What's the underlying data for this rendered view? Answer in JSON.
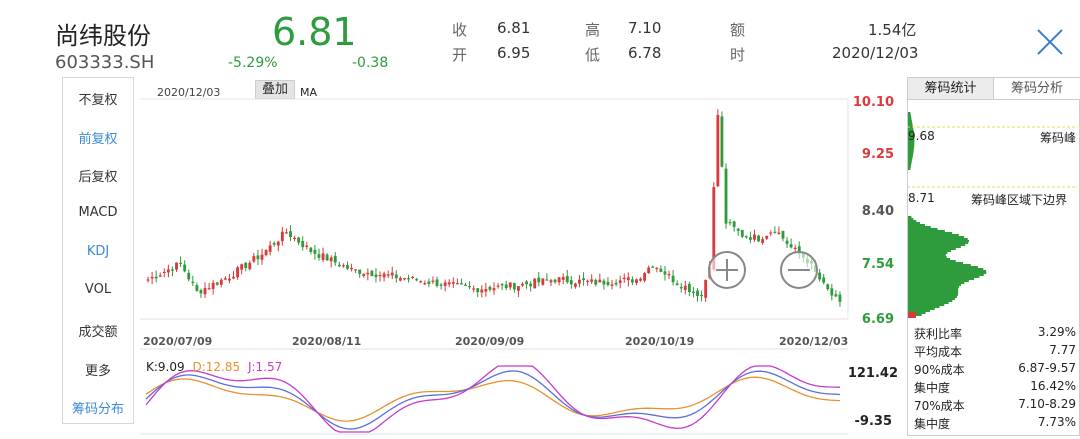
{
  "header": {
    "stock_name": "尚纬股份",
    "stock_code": "603333.SH",
    "price": "6.81",
    "change_pct": "-5.29%",
    "change_amt": "-0.38",
    "close_label": "收",
    "close_value": "6.81",
    "open_label": "开",
    "open_value": "6.95",
    "high_label": "高",
    "high_value": "7.10",
    "low_label": "低",
    "low_value": "6.78",
    "amount_label": "额",
    "amount_value": "1.54亿",
    "time_label": "时",
    "time_value": "2020/12/03"
  },
  "sidebar": {
    "items": [
      {
        "label": "不复权"
      },
      {
        "label": "前复权"
      },
      {
        "label": "后复权"
      },
      {
        "label": "MACD"
      },
      {
        "label": "KDJ"
      },
      {
        "label": "VOL"
      },
      {
        "label": "成交额"
      },
      {
        "label": "更多"
      },
      {
        "label": "筹码分布"
      }
    ]
  },
  "chart": {
    "top_date": "2020/12/03",
    "overlay_label": "叠加",
    "ma_label": "MA",
    "price_axis": [
      "10.10",
      "9.25",
      "8.40",
      "7.54",
      "6.69"
    ],
    "x_axis": [
      "2020/07/09",
      "2020/08/11",
      "2020/09/09",
      "2020/10/19",
      "2020/12/03"
    ],
    "kdj_axis": [
      "121.42",
      "-9.35"
    ],
    "kdj_k": "K:9.09",
    "kdj_d": "D:12.85",
    "kdj_j": "J:1.57",
    "colors": {
      "up": "#d93a3a",
      "down": "#2e9b3c",
      "k": "#5a6fd8",
      "d": "#e8912f",
      "j": "#c83bd0"
    }
  },
  "chart_data": {
    "type": "candlestick",
    "ylim": [
      6.69,
      10.1
    ],
    "x_ticks": [
      "2020/07/09",
      "2020/08/11",
      "2020/09/09",
      "2020/10/19",
      "2020/12/03"
    ],
    "kdj_ylim": [
      -9.35,
      121.42
    ],
    "last_kdj": {
      "K": 9.09,
      "D": 12.85,
      "J": 1.57
    }
  },
  "panel": {
    "tab_active": "筹码统计",
    "tab_inactive": "筹码分析",
    "peak_price": "9.68",
    "peak_label": "筹码峰",
    "lower_price": "8.71",
    "lower_label": "筹码峰区域下边界",
    "stats": [
      {
        "label": "获利比率",
        "value": "3.29%"
      },
      {
        "label": "平均成本",
        "value": "7.77"
      },
      {
        "label": "90%成本",
        "value": "6.87-9.57"
      },
      {
        "label": "集中度",
        "value": "16.42%"
      },
      {
        "label": "70%成本",
        "value": "7.10-8.29"
      },
      {
        "label": "集中度",
        "value": "7.73%"
      }
    ]
  }
}
